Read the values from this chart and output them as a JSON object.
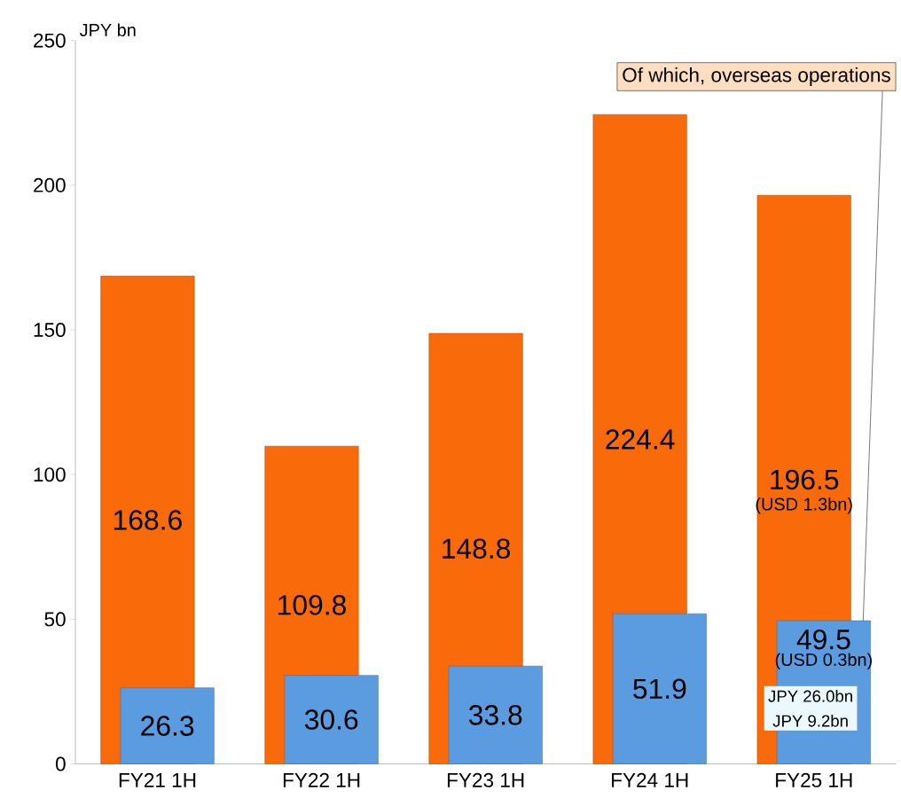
{
  "chart_data": {
    "type": "bar",
    "ylabel": "JPY bn",
    "categories": [
      "FY21 1H",
      "FY22 1H",
      "FY23 1H",
      "FY24 1H",
      "FY25 1H"
    ],
    "series": [
      {
        "color": "#f96a0a",
        "values": [
          168.6,
          109.8,
          148.8,
          224.4,
          196.5
        ]
      },
      {
        "color": "#5b9be0",
        "values": [
          26.3,
          30.6,
          33.8,
          51.9,
          49.5
        ]
      }
    ],
    "ylim": [
      0,
      250
    ],
    "yticks": [
      0,
      50,
      100,
      150,
      200,
      250
    ],
    "grid": false,
    "data_labels": true,
    "annotations": [
      "(USD 1.3bn)",
      "(USD 0.3bn)",
      "Of which, overseas operations",
      "JPY 26.0bn",
      "JPY 9.2bn"
    ]
  }
}
